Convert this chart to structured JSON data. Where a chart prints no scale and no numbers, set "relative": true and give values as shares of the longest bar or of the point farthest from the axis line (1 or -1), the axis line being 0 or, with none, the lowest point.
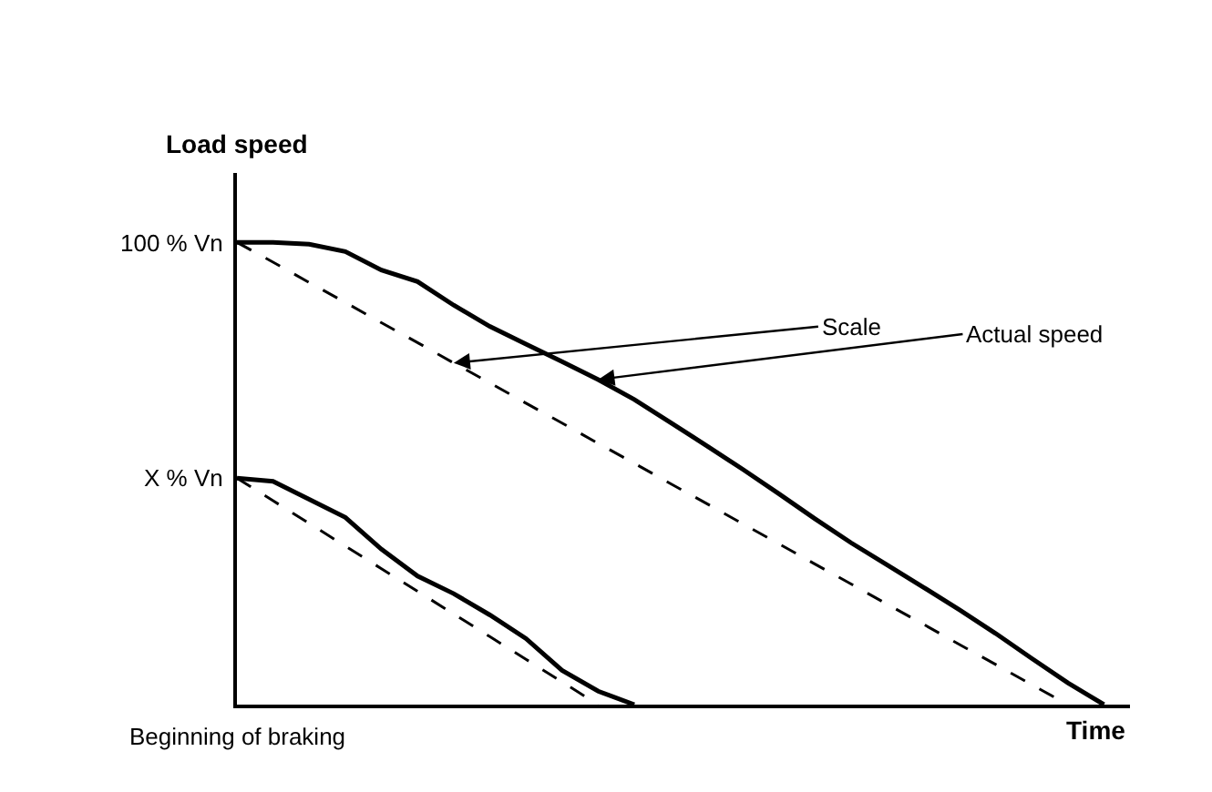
{
  "chart_data": {
    "type": "line",
    "relative": true,
    "xlabel": "Time",
    "ylabel": "Load speed",
    "marker": "none",
    "categories": [
      null,
      null,
      null,
      null,
      null,
      null,
      null,
      null,
      null,
      null,
      null,
      null,
      null,
      null,
      null,
      null,
      null,
      null,
      null,
      null,
      null,
      null,
      null,
      null,
      null
    ],
    "series": [
      {
        "color": "#000000",
        "line_style": "dashed",
        "values": [
          1,
          0.957,
          0.913,
          0.87,
          0.826,
          0.783,
          0.739,
          0.696,
          0.652,
          0.609,
          0.565,
          0.522,
          0.478,
          0.435,
          0.391,
          0.348,
          0.304,
          0.261,
          0.217,
          0.174,
          0.13,
          0.087,
          0.043,
          0,
          null
        ]
      },
      {
        "color": "#000000",
        "line_style": "solid",
        "values": [
          1,
          1,
          0.996,
          0.98,
          0.94,
          0.915,
          0.864,
          0.818,
          0.78,
          0.742,
          0.703,
          0.66,
          0.61,
          0.56,
          0.509,
          0.456,
          0.402,
          0.35,
          0.302,
          0.254,
          0.205,
          0.154,
          0.1,
          0.047,
          0
        ]
      },
      {
        "color": "#000000",
        "line_style": "dashed",
        "values": [
          0.49,
          0.441,
          0.392,
          0.343,
          0.294,
          0.245,
          0.196,
          0.147,
          0.098,
          0.049,
          0,
          null,
          null,
          null,
          null,
          null,
          null,
          null,
          null,
          null,
          null,
          null,
          null,
          null,
          null
        ]
      },
      {
        "color": "#000000",
        "line_style": "solid",
        "values": [
          0.49,
          0.483,
          0.444,
          0.405,
          0.336,
          0.278,
          0.24,
          0.194,
          0.143,
          0.074,
          0.029,
          0,
          null,
          null,
          null,
          null,
          null,
          null,
          null,
          null,
          null,
          null,
          null,
          null,
          null
        ]
      }
    ],
    "annotations": [
      "100 % Vn",
      "X % Vn",
      "Beginning of braking",
      "Scale",
      "Actual speed"
    ]
  }
}
